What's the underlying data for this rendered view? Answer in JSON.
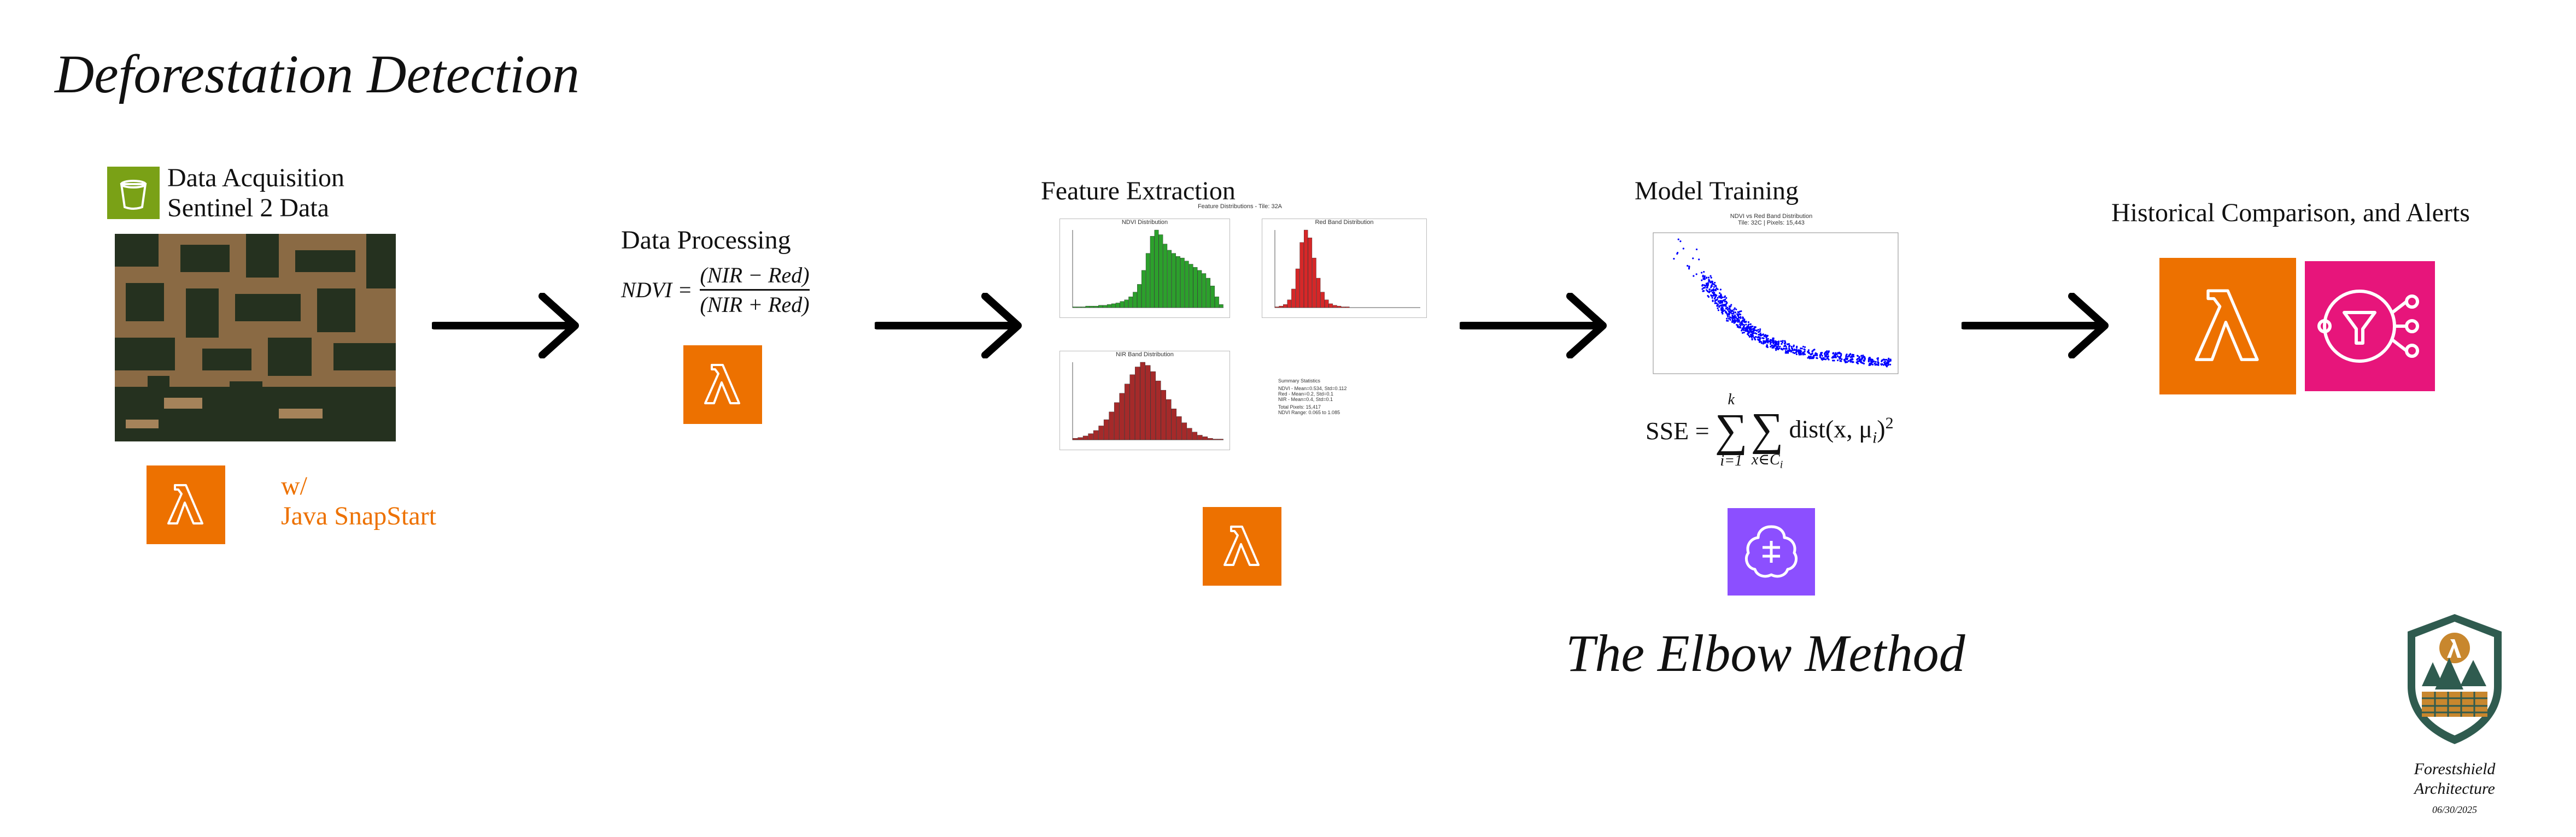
{
  "title": "Deforestation Detection",
  "stages": {
    "acquisition": {
      "line1": "Data Acquisition",
      "line2": "Sentinel 2 Data",
      "note_line1": "w/",
      "note_line2": "Java SnapStart"
    },
    "processing": {
      "label": "Data Processing",
      "formula": {
        "lhs": "NDVI =",
        "numerator": "(NIR − Red)",
        "denominator": "(NIR + Red)"
      }
    },
    "features": {
      "label": "Feature Extraction",
      "figure_title": "Feature Distributions - Tile: 32A",
      "hist1_title": "NDVI Distribution",
      "hist2_title": "Red Band Distribution",
      "hist3_title": "NIR Band Distribution",
      "stats_title": "Summary Statistics",
      "stats_lines": [
        "NDVI - Mean=0.534, Std=0.112",
        "Red - Mean=0.2, Std=0.1",
        "NIR - Mean=0.4, Std=0.1",
        "Total Pixels: 15,417",
        "NDVI Range: 0.065 to 1.085"
      ]
    },
    "training": {
      "label": "Model Training",
      "scatter_title": "NDVI vs Red Band Distribution",
      "scatter_subtitle": "Tile: 32C | Pixels: 15,443",
      "formula_lhs": "SSE =",
      "sum_top": "k",
      "sum_bottom1": "i=1",
      "sum_bottom2": "x∈C",
      "sum_sub": "i",
      "formula_rhs": "dist(x, μ",
      "formula_rhs_sub": "i",
      "formula_rhs_end": ")",
      "formula_pow": "2",
      "caption": "The Elbow Method"
    },
    "alerts": {
      "label": "Historical Comparison, and Alerts"
    }
  },
  "logo": {
    "name_line1": "Forestshield",
    "name_line2": "Architecture",
    "date": "06/30/2025"
  },
  "colors": {
    "lambda": "#ED7100",
    "s3": "#7AA116",
    "sagemaker": "#8C4FFF",
    "sns": "#E7157B",
    "green_hist": "#2ca02c",
    "red_hist": "#d62728",
    "nir_hist": "#a52a2a",
    "scatter": "#0000ff"
  },
  "icons": [
    "s3-bucket-icon",
    "lambda-icon",
    "sagemaker-icon",
    "sns-icon",
    "arrow-icon",
    "forestshield-logo-icon"
  ],
  "chart_data": [
    {
      "type": "bar",
      "title": "NDVI Distribution",
      "xlim": [
        0,
        1
      ],
      "values": [
        1,
        1,
        1,
        2,
        2,
        2,
        3,
        3,
        4,
        5,
        6,
        8,
        10,
        14,
        20,
        30,
        48,
        70,
        92,
        100,
        94,
        82,
        74,
        70,
        66,
        64,
        60,
        56,
        52,
        48,
        44,
        38,
        28,
        14,
        4
      ]
    },
    {
      "type": "bar",
      "title": "Red Band Distribution",
      "xlim": [
        0,
        1
      ],
      "values": [
        1,
        2,
        4,
        10,
        24,
        50,
        84,
        100,
        90,
        64,
        38,
        20,
        10,
        5,
        3,
        2,
        1,
        1,
        0,
        0,
        0,
        0,
        0,
        0,
        0,
        0,
        0,
        0,
        0,
        0,
        0,
        0,
        0,
        0,
        0
      ]
    },
    {
      "type": "bar",
      "title": "NIR Band Distribution",
      "xlim": [
        0,
        1
      ],
      "values": [
        2,
        3,
        5,
        8,
        12,
        18,
        26,
        36,
        48,
        60,
        72,
        84,
        94,
        100,
        96,
        88,
        76,
        64,
        52,
        40,
        30,
        22,
        15,
        10,
        6,
        4,
        2,
        1,
        1
      ]
    },
    {
      "type": "scatter",
      "title": "NDVI vs Red Band Distribution",
      "xlim": [
        0,
        1
      ],
      "ylim": [
        0,
        1
      ],
      "points": [
        [
          0.1,
          0.85
        ],
        [
          0.12,
          0.9
        ],
        [
          0.14,
          0.8
        ],
        [
          0.16,
          0.82
        ],
        [
          0.18,
          0.7
        ],
        [
          0.2,
          0.75
        ],
        [
          0.22,
          0.64
        ],
        [
          0.24,
          0.6
        ],
        [
          0.26,
          0.55
        ],
        [
          0.28,
          0.5
        ],
        [
          0.3,
          0.46
        ],
        [
          0.32,
          0.42
        ],
        [
          0.34,
          0.4
        ],
        [
          0.36,
          0.36
        ],
        [
          0.38,
          0.33
        ],
        [
          0.4,
          0.3
        ],
        [
          0.42,
          0.28
        ],
        [
          0.45,
          0.25
        ],
        [
          0.48,
          0.22
        ],
        [
          0.52,
          0.2
        ],
        [
          0.56,
          0.18
        ],
        [
          0.6,
          0.16
        ],
        [
          0.65,
          0.14
        ],
        [
          0.7,
          0.13
        ],
        [
          0.75,
          0.12
        ],
        [
          0.8,
          0.11
        ],
        [
          0.85,
          0.1
        ],
        [
          0.9,
          0.09
        ],
        [
          0.95,
          0.08
        ]
      ]
    }
  ]
}
